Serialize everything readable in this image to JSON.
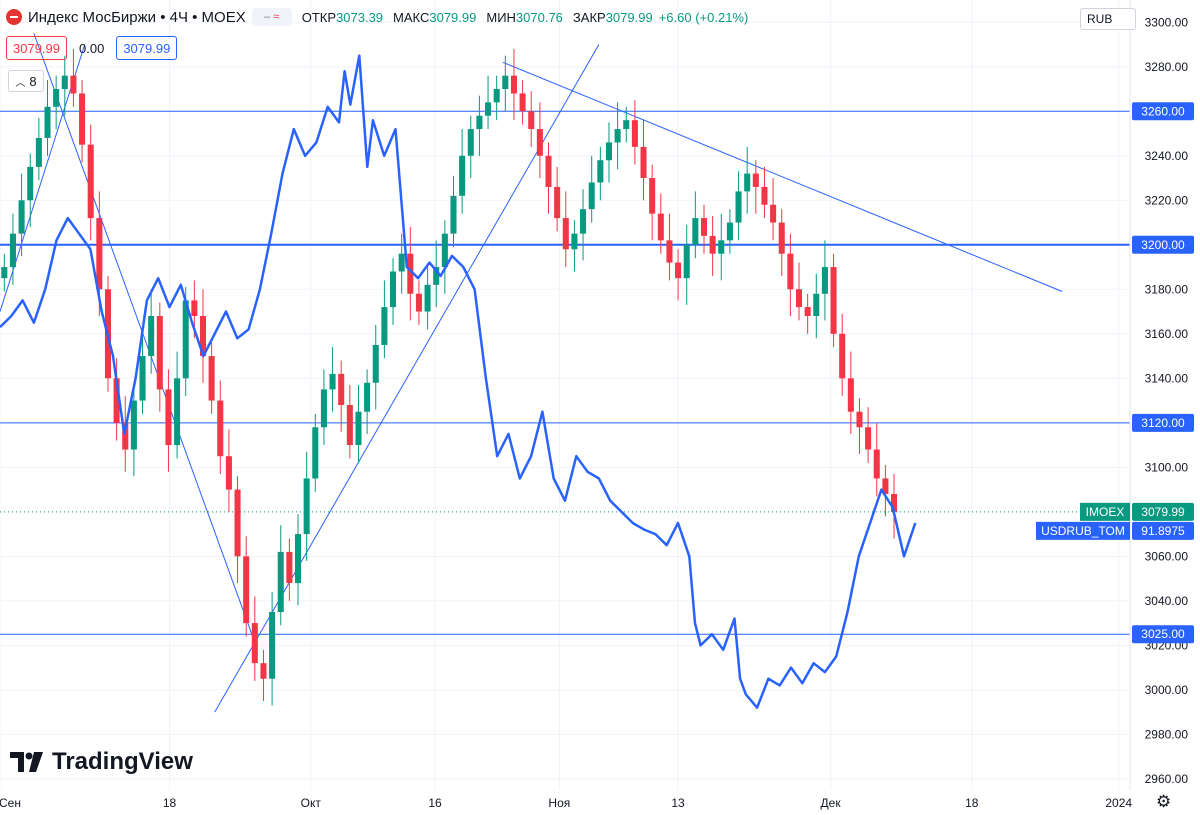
{
  "header": {
    "title": "Индекс МосБиржи • 4Ч • MOEX",
    "compare_glyph": "≈",
    "ohlc": [
      {
        "label": "ОТКР",
        "value": "3073.39"
      },
      {
        "label": "МАКС",
        "value": "3079.99"
      },
      {
        "label": "МИН",
        "value": "3070.76"
      },
      {
        "label": "ЗАКР",
        "value": "3079.99"
      }
    ],
    "change": "+6.60 (+0.21%)"
  },
  "price_row": {
    "sell": "3079.99",
    "spread": "0.00",
    "buy": "3079.99"
  },
  "indicator_count": "8",
  "currency": "RUB",
  "colors": {
    "up": "#089981",
    "down": "#f23645",
    "line": "#2962ff",
    "bg": "#ffffff"
  },
  "icons": {
    "symbol": "moex-logo-icon",
    "compare": "compare-icon",
    "settings": "gear-icon"
  },
  "brand": "TradingView",
  "chart_data": {
    "type": "line",
    "y_axis": {
      "min": 2955,
      "max": 3310,
      "ticks": [
        2960,
        2980,
        3000,
        3020,
        3040,
        3060,
        3080,
        3100,
        3120,
        3140,
        3160,
        3180,
        3200,
        3220,
        3240,
        3260,
        3280,
        3300
      ],
      "unit": "RUB"
    },
    "x_axis": {
      "labels": [
        "Сен",
        "18",
        "Окт",
        "16",
        "Ноя",
        "13",
        "Дек",
        "18",
        "2024"
      ],
      "label_pos": [
        0,
        0.15,
        0.275,
        0.385,
        0.495,
        0.6,
        0.735,
        0.86,
        0.99
      ]
    },
    "price_scale_labels": [
      {
        "value": 3260,
        "text": "3260.00"
      },
      {
        "value": 3200,
        "text": "3200.00"
      },
      {
        "value": 3120,
        "text": "3120.00"
      },
      {
        "value": 3025,
        "text": "3025.00"
      }
    ],
    "horizontal_levels": [
      3260,
      3200,
      3120,
      3025
    ],
    "trend_lines": [
      {
        "from": [
          0.0,
          3170
        ],
        "to": [
          0.075,
          3290
        ]
      },
      {
        "from": [
          0.03,
          3295
        ],
        "to": [
          0.225,
          3022
        ]
      },
      {
        "from": [
          0.19,
          2990
        ],
        "to": [
          0.53,
          3290
        ]
      },
      {
        "from": [
          0.445,
          3282
        ],
        "to": [
          0.94,
          3179
        ]
      }
    ],
    "last_price": {
      "value": 3079.99,
      "text": "3079.99",
      "label": "IMOEX"
    },
    "series": [
      {
        "name": "IMOEX",
        "kind": "candles",
        "closes": [
          3190,
          3205,
          3220,
          3235,
          3248,
          3262,
          3270,
          3276,
          3268,
          3245,
          3212,
          3180,
          3140,
          3120,
          3108,
          3130,
          3150,
          3168,
          3135,
          3110,
          3140,
          3175,
          3168,
          3150,
          3130,
          3105,
          3090,
          3060,
          3030,
          3012,
          3005,
          3035,
          3062,
          3048,
          3070,
          3095,
          3118,
          3135,
          3142,
          3128,
          3110,
          3125,
          3138,
          3155,
          3172,
          3188,
          3196,
          3178,
          3170,
          3182,
          3190,
          3205,
          3222,
          3240,
          3252,
          3258,
          3264,
          3270,
          3276,
          3268,
          3260,
          3252,
          3240,
          3226,
          3212,
          3198,
          3205,
          3216,
          3228,
          3238,
          3246,
          3252,
          3256,
          3244,
          3230,
          3214,
          3202,
          3192,
          3185,
          3200,
          3212,
          3204,
          3196,
          3202,
          3210,
          3224,
          3232,
          3226,
          3218,
          3210,
          3196,
          3180,
          3172,
          3168,
          3178,
          3190,
          3160,
          3140,
          3125,
          3118,
          3108,
          3095,
          3088,
          3080
        ],
        "x_range": [
          0.0,
          0.795
        ]
      },
      {
        "name": "USDRUB_TOM",
        "kind": "line",
        "label_text": "91.8975",
        "points": [
          [
            0.0,
            3163
          ],
          [
            0.01,
            3168
          ],
          [
            0.02,
            3175
          ],
          [
            0.03,
            3165
          ],
          [
            0.04,
            3180
          ],
          [
            0.05,
            3202
          ],
          [
            0.06,
            3212
          ],
          [
            0.07,
            3205
          ],
          [
            0.08,
            3198
          ],
          [
            0.09,
            3170
          ],
          [
            0.1,
            3150
          ],
          [
            0.11,
            3115
          ],
          [
            0.12,
            3140
          ],
          [
            0.13,
            3175
          ],
          [
            0.14,
            3185
          ],
          [
            0.15,
            3172
          ],
          [
            0.16,
            3182
          ],
          [
            0.17,
            3165
          ],
          [
            0.18,
            3150
          ],
          [
            0.19,
            3160
          ],
          [
            0.2,
            3170
          ],
          [
            0.21,
            3158
          ],
          [
            0.22,
            3162
          ],
          [
            0.23,
            3180
          ],
          [
            0.24,
            3205
          ],
          [
            0.25,
            3232
          ],
          [
            0.26,
            3252
          ],
          [
            0.27,
            3240
          ],
          [
            0.28,
            3246
          ],
          [
            0.29,
            3262
          ],
          [
            0.3,
            3255
          ],
          [
            0.305,
            3278
          ],
          [
            0.31,
            3263
          ],
          [
            0.318,
            3285
          ],
          [
            0.325,
            3235
          ],
          [
            0.33,
            3256
          ],
          [
            0.34,
            3240
          ],
          [
            0.35,
            3252
          ],
          [
            0.36,
            3190
          ],
          [
            0.37,
            3185
          ],
          [
            0.38,
            3192
          ],
          [
            0.39,
            3186
          ],
          [
            0.4,
            3195
          ],
          [
            0.41,
            3190
          ],
          [
            0.42,
            3180
          ],
          [
            0.43,
            3140
          ],
          [
            0.44,
            3105
          ],
          [
            0.45,
            3115
          ],
          [
            0.46,
            3095
          ],
          [
            0.47,
            3105
          ],
          [
            0.48,
            3125
          ],
          [
            0.49,
            3095
          ],
          [
            0.5,
            3085
          ],
          [
            0.51,
            3105
          ],
          [
            0.52,
            3098
          ],
          [
            0.53,
            3095
          ],
          [
            0.54,
            3085
          ],
          [
            0.55,
            3080
          ],
          [
            0.56,
            3075
          ],
          [
            0.57,
            3072
          ],
          [
            0.58,
            3070
          ],
          [
            0.59,
            3065
          ],
          [
            0.6,
            3075
          ],
          [
            0.61,
            3060
          ],
          [
            0.615,
            3030
          ],
          [
            0.62,
            3020
          ],
          [
            0.63,
            3025
          ],
          [
            0.64,
            3018
          ],
          [
            0.65,
            3032
          ],
          [
            0.655,
            3005
          ],
          [
            0.66,
            2998
          ],
          [
            0.67,
            2992
          ],
          [
            0.68,
            3005
          ],
          [
            0.69,
            3002
          ],
          [
            0.7,
            3010
          ],
          [
            0.71,
            3003
          ],
          [
            0.72,
            3012
          ],
          [
            0.73,
            3008
          ],
          [
            0.74,
            3015
          ],
          [
            0.75,
            3035
          ],
          [
            0.76,
            3060
          ],
          [
            0.77,
            3075
          ],
          [
            0.78,
            3090
          ],
          [
            0.79,
            3082
          ],
          [
            0.8,
            3060
          ],
          [
            0.81,
            3075
          ]
        ]
      }
    ]
  }
}
